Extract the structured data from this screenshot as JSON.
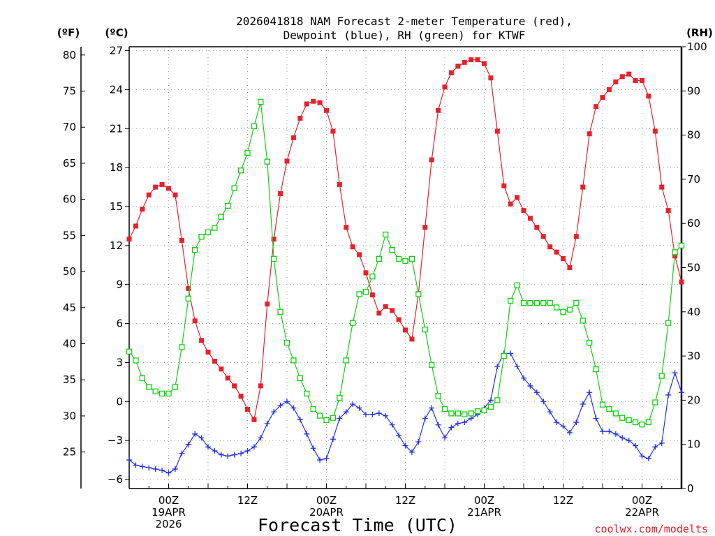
{
  "chart_data": {
    "type": "line",
    "title_line1": "2026041818 NAM Forecast 2-meter Temperature (red),",
    "title_line2": "Dewpoint (blue), RH (green) for KTWF",
    "xlabel": "Forecast Time (UTC)",
    "credit": "coolwx.com/modelts",
    "units": {
      "fahrenheit": "(ºF)",
      "celsius": "(ºC)",
      "rh": "(RH)"
    },
    "left_outer_axis": {
      "ticks": [
        "80",
        "75",
        "70",
        "65",
        "60",
        "55",
        "50",
        "45",
        "40",
        "35",
        "30",
        "25"
      ],
      "values": [
        80,
        75,
        70,
        65,
        60,
        55,
        50,
        45,
        40,
        35,
        30,
        25
      ]
    },
    "left_axis": {
      "ticks": [
        "27",
        "24",
        "21",
        "18",
        "15",
        "12",
        "9",
        "6",
        "3",
        "0",
        "−3",
        "−6"
      ],
      "values": [
        27,
        24,
        21,
        18,
        15,
        12,
        9,
        6,
        3,
        0,
        -3,
        -6
      ],
      "ylim": [
        -6.7,
        27.3
      ]
    },
    "right_axis": {
      "ticks": [
        "100",
        "90",
        "80",
        "70",
        "60",
        "50",
        "40",
        "30",
        "20",
        "10",
        "0"
      ],
      "values": [
        100,
        90,
        80,
        70,
        60,
        50,
        40,
        30,
        20,
        10,
        0
      ],
      "ylim": [
        0,
        100
      ]
    },
    "x_range_hours": [
      -6,
      78
    ],
    "x_ticks": [
      {
        "h": 0,
        "line1": "00Z",
        "line2": "19APR",
        "line3": "2026"
      },
      {
        "h": 12,
        "line1": "12Z",
        "line2": "",
        "line3": ""
      },
      {
        "h": 24,
        "line1": "00Z",
        "line2": "20APR",
        "line3": ""
      },
      {
        "h": 36,
        "line1": "12Z",
        "line2": "",
        "line3": ""
      },
      {
        "h": 48,
        "line1": "00Z",
        "line2": "21APR",
        "line3": ""
      },
      {
        "h": 60,
        "line1": "12Z",
        "line2": "",
        "line3": ""
      },
      {
        "h": 72,
        "line1": "00Z",
        "line2": "22APR",
        "line3": ""
      }
    ],
    "x_hours": [
      -6,
      -5,
      -4,
      -3,
      -2,
      -1,
      0,
      1,
      2,
      3,
      4,
      5,
      6,
      7,
      8,
      9,
      10,
      11,
      12,
      13,
      14,
      15,
      16,
      17,
      18,
      19,
      20,
      21,
      22,
      23,
      24,
      25,
      26,
      27,
      28,
      29,
      30,
      31,
      32,
      33,
      34,
      35,
      36,
      37,
      38,
      39,
      40,
      41,
      42,
      43,
      44,
      45,
      46,
      47,
      48,
      49,
      50,
      51,
      52,
      53,
      54,
      55,
      56,
      57,
      58,
      59,
      60,
      61,
      62,
      63,
      64,
      65,
      66,
      67,
      68,
      69,
      70,
      71,
      72,
      73,
      74,
      75,
      76,
      77,
      78
    ],
    "series": [
      {
        "name": "Temperature",
        "color": "#e8202a",
        "marker": "filled-square",
        "values": [
          12.5,
          13.5,
          14.8,
          15.9,
          16.5,
          16.7,
          16.4,
          15.9,
          12.4,
          8.7,
          6.2,
          4.7,
          3.8,
          3.1,
          2.5,
          1.8,
          1.2,
          0.4,
          -0.6,
          -1.4,
          1.2,
          7.5,
          12.5,
          16.0,
          18.5,
          20.3,
          21.8,
          22.9,
          23.1,
          23.0,
          22.4,
          20.8,
          16.7,
          13.4,
          11.9,
          11.3,
          9.9,
          8.2,
          6.8,
          7.3,
          7.0,
          6.3,
          5.5,
          4.8,
          8.3,
          13.4,
          18.6,
          22.4,
          24.2,
          25.3,
          25.8,
          26.1,
          26.3,
          26.3,
          26.0,
          24.9,
          20.8,
          16.6,
          15.2,
          15.7,
          14.7,
          14.1,
          13.4,
          12.7,
          11.9,
          11.5,
          11.0,
          10.3,
          12.7,
          16.5,
          20.6,
          22.7,
          23.4,
          24.0,
          24.6,
          25.0,
          25.2,
          24.7,
          24.7,
          23.5,
          20.8,
          16.5,
          14.7,
          11.2,
          9.2
        ]
      },
      {
        "name": "Dewpoint",
        "color": "#2030e8",
        "marker": "plus",
        "values": [
          -4.5,
          -4.9,
          -5.0,
          -5.1,
          -5.2,
          -5.3,
          -5.5,
          -5.2,
          -4.0,
          -3.3,
          -2.5,
          -2.8,
          -3.5,
          -3.8,
          -4.1,
          -4.2,
          -4.1,
          -4.0,
          -3.8,
          -3.5,
          -2.8,
          -1.7,
          -0.8,
          -0.3,
          0.0,
          -0.5,
          -1.4,
          -2.5,
          -3.6,
          -4.5,
          -4.4,
          -2.9,
          -1.3,
          -0.8,
          -0.2,
          -0.5,
          -1.0,
          -1.0,
          -0.9,
          -1.1,
          -1.8,
          -2.6,
          -3.4,
          -3.9,
          -3.1,
          -1.3,
          -0.5,
          -1.8,
          -2.8,
          -2.0,
          -1.7,
          -1.6,
          -1.3,
          -1.0,
          -0.5,
          0.1,
          2.7,
          3.7,
          3.7,
          2.7,
          1.8,
          1.2,
          0.7,
          0.0,
          -0.8,
          -1.6,
          -1.9,
          -2.4,
          -1.6,
          -0.2,
          0.7,
          -1.3,
          -2.3,
          -2.3,
          -2.5,
          -2.8,
          -3.0,
          -3.4,
          -4.2,
          -4.4,
          -3.5,
          -3.2,
          0.5,
          2.2,
          0.7
        ]
      },
      {
        "name": "RH",
        "color": "#10d010",
        "marker": "open-square",
        "values": [
          31,
          29,
          25,
          23,
          22,
          21.5,
          21.5,
          23,
          32,
          43,
          54,
          57,
          58,
          59,
          61.5,
          64,
          68,
          72,
          76,
          82,
          87.5,
          74,
          52,
          40,
          33,
          29,
          25,
          21.5,
          18,
          16.5,
          15.5,
          16,
          20.5,
          29,
          37.5,
          44,
          44.5,
          48,
          52,
          57.5,
          54,
          52,
          51.5,
          52,
          44,
          36,
          28,
          21,
          18,
          17,
          17,
          16.8,
          17,
          17.5,
          17.7,
          18.5,
          20,
          30,
          42.5,
          46,
          42,
          42,
          42,
          42,
          42,
          41,
          40,
          40.5,
          42,
          38,
          33,
          27,
          19,
          18,
          17,
          16,
          15.5,
          15,
          14.5,
          15,
          19.5,
          25.5,
          37.5,
          53.5,
          55
        ]
      }
    ]
  }
}
